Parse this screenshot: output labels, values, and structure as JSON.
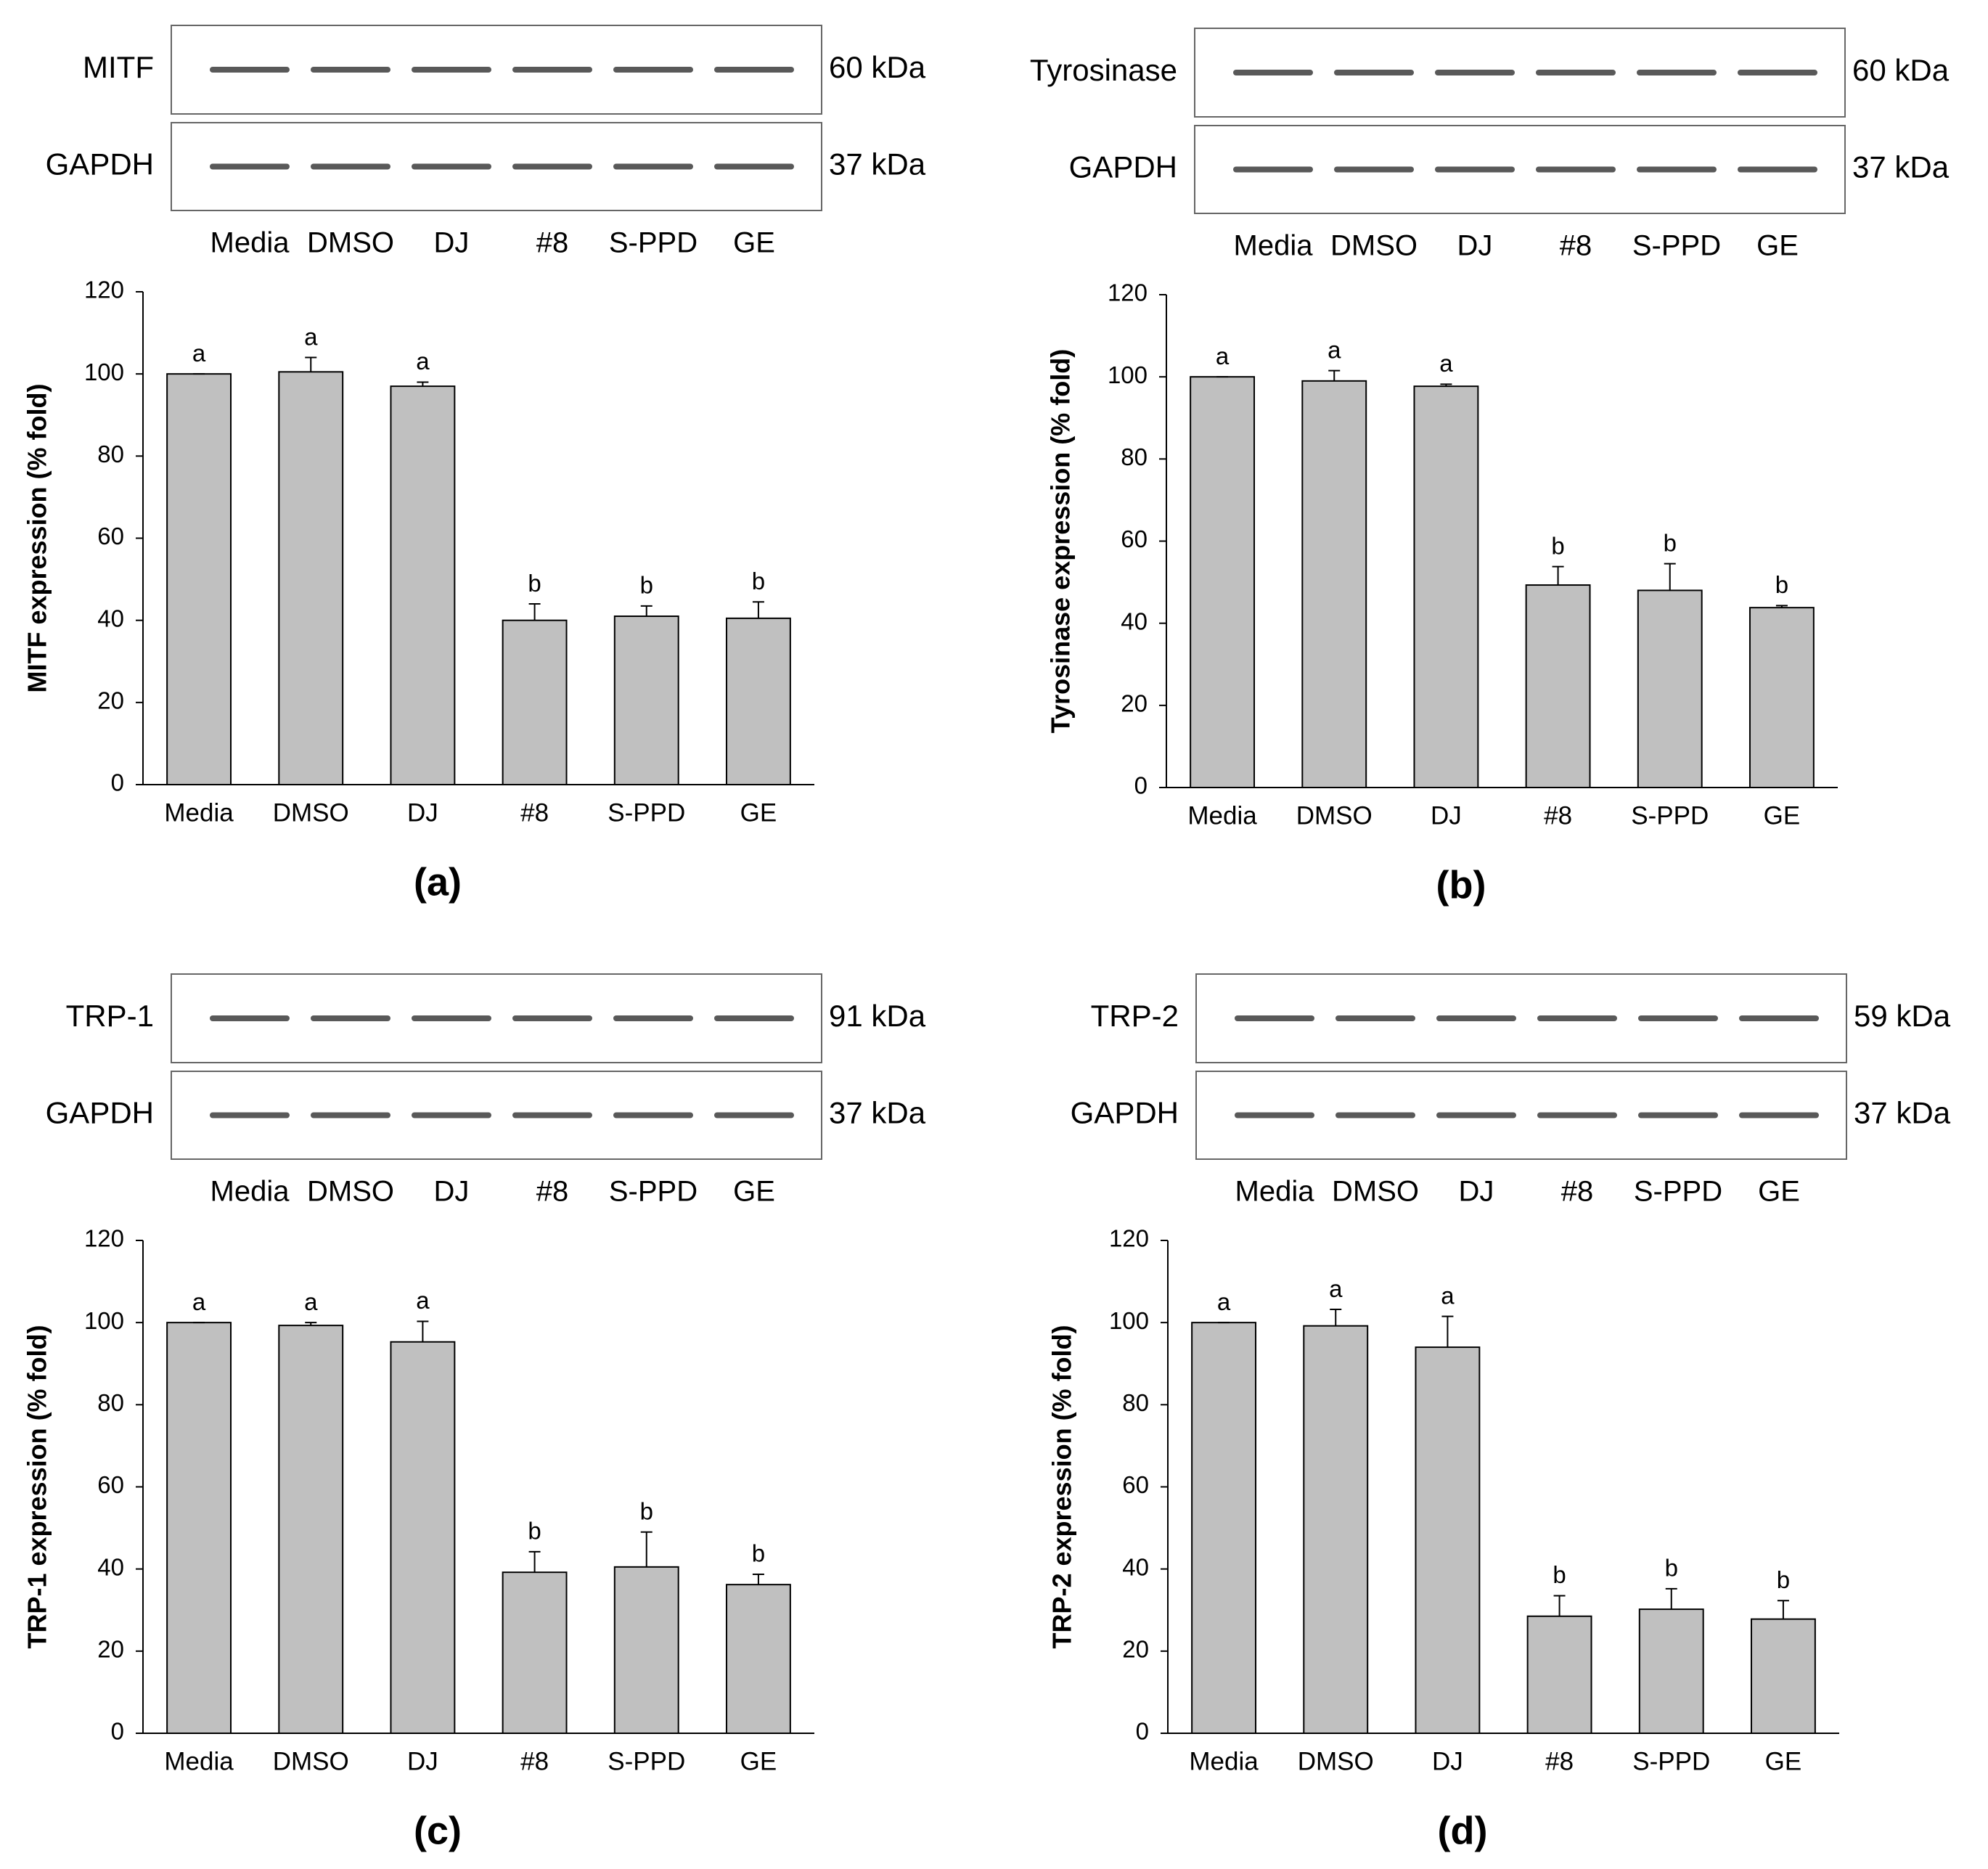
{
  "chart_data": [
    {
      "type": "bar",
      "panel_label": "(a)",
      "blot": [
        {
          "label": "MITF",
          "size": "60 kDa"
        },
        {
          "label": "GAPDH",
          "size": "37 kDa"
        }
      ],
      "categories": [
        "Media",
        "DMSO",
        "DJ",
        "#8",
        "S-PPD",
        "GE"
      ],
      "values": [
        100,
        100.5,
        97,
        40,
        41,
        40.5
      ],
      "errors": [
        0,
        3.5,
        1,
        4,
        2.5,
        4
      ],
      "letters": [
        "a",
        "a",
        "a",
        "b",
        "b",
        "b"
      ],
      "color": "#c0c0c0",
      "ylabel": "MITF expression (% fold)",
      "ylim": [
        0,
        120
      ],
      "yticks": [
        0,
        20,
        40,
        60,
        80,
        100,
        120
      ]
    },
    {
      "type": "bar",
      "panel_label": "(b)",
      "blot": [
        {
          "label": "Tyrosinase",
          "size": "60 kDa"
        },
        {
          "label": "GAPDH",
          "size": "37 kDa"
        }
      ],
      "categories": [
        "Media",
        "DMSO",
        "DJ",
        "#8",
        "S-PPD",
        "GE"
      ],
      "values": [
        100,
        99,
        97.7,
        49.3,
        48,
        43.8
      ],
      "errors": [
        0,
        2.5,
        0.5,
        4.5,
        6.5,
        0.5
      ],
      "letters": [
        "a",
        "a",
        "a",
        "b",
        "b",
        "b"
      ],
      "color": "#c0c0c0",
      "ylabel": "Tyrosinase expression (% fold)",
      "ylim": [
        0,
        120
      ],
      "yticks": [
        0,
        20,
        40,
        60,
        80,
        100,
        120
      ]
    },
    {
      "type": "bar",
      "panel_label": "(c)",
      "blot": [
        {
          "label": "TRP-1",
          "size": "91 kDa"
        },
        {
          "label": "GAPDH",
          "size": "37 kDa"
        }
      ],
      "categories": [
        "Media",
        "DMSO",
        "DJ",
        "#8",
        "S-PPD",
        "GE"
      ],
      "values": [
        100,
        99.3,
        95.3,
        39.2,
        40.5,
        36.2
      ],
      "errors": [
        0,
        0.7,
        5,
        5,
        8.5,
        2.5
      ],
      "letters": [
        "a",
        "a",
        "a",
        "b",
        "b",
        "b"
      ],
      "color": "#c0c0c0",
      "ylabel": "TRP-1 expression (% fold)",
      "ylim": [
        0,
        120
      ],
      "yticks": [
        0,
        20,
        40,
        60,
        80,
        100,
        120
      ]
    },
    {
      "type": "bar",
      "panel_label": "(d)",
      "blot": [
        {
          "label": "TRP-2",
          "size": "59 kDa"
        },
        {
          "label": "GAPDH",
          "size": "37 kDa"
        }
      ],
      "categories": [
        "Media",
        "DMSO",
        "DJ",
        "#8",
        "S-PPD",
        "GE"
      ],
      "values": [
        100,
        99.2,
        94,
        28.5,
        30.2,
        27.8
      ],
      "errors": [
        0,
        4,
        7.5,
        5,
        5,
        4.5
      ],
      "letters": [
        "a",
        "a",
        "a",
        "b",
        "b",
        "b"
      ],
      "color": "#c0c0c0",
      "ylabel": "TRP-2 expression (% fold)",
      "ylim": [
        0,
        120
      ],
      "yticks": [
        0,
        20,
        40,
        60,
        80,
        100,
        120
      ]
    }
  ]
}
